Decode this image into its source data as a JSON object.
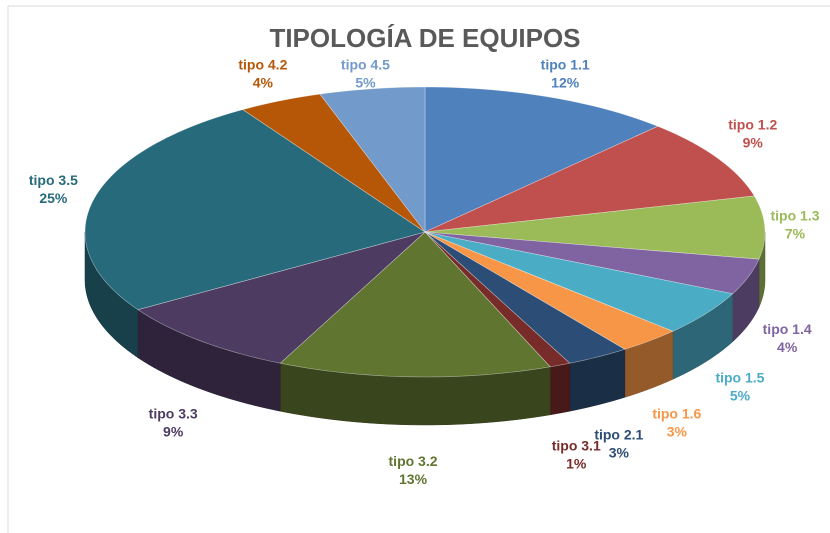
{
  "chart_data": {
    "type": "pie",
    "title": "TIPOLOGÍA DE EQUIPOS",
    "categories": [
      "tipo 1.1",
      "tipo 1.2",
      "tipo 1.3",
      "tipo 1.4",
      "tipo 1.5",
      "tipo 1.6",
      "tipo 2.1",
      "tipo 3.1",
      "tipo 3.2",
      "tipo 3.3",
      "tipo 3.5",
      "tipo 4.2",
      "tipo 4.5"
    ],
    "values": [
      12,
      9,
      7,
      4,
      5,
      3,
      3,
      1,
      13,
      9,
      25,
      4,
      5
    ],
    "value_labels": [
      "12%",
      "9%",
      "7%",
      "4%",
      "5%",
      "3%",
      "3%",
      "1%",
      "13%",
      "9%",
      "25%",
      "4%",
      "5%"
    ],
    "colors": [
      "#4f81bd",
      "#c0504d",
      "#9bbb59",
      "#8064a2",
      "#4bacc6",
      "#f79646",
      "#2c4d75",
      "#772c2a",
      "#5f7530",
      "#4d3b62",
      "#276a7c",
      "#b65708",
      "#729aca"
    ]
  }
}
